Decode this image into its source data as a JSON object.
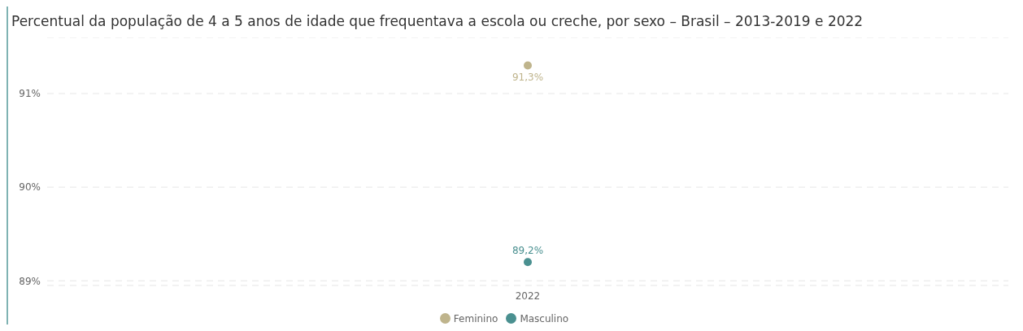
{
  "chart_data": {
    "type": "line",
    "title": "Percentual da população de 4 a 5 anos de idade que frequentava a escola ou creche, por sexo – Brasil – 2013-2019 e 2022",
    "categories": [
      "2022"
    ],
    "series": [
      {
        "name": "Masculino",
        "color": "#4a9090",
        "values": [
          89.2
        ],
        "value_labels": [
          "89,2%"
        ]
      },
      {
        "name": "Feminino",
        "color": "#bfb48c",
        "values": [
          91.3
        ],
        "value_labels": [
          "91,3%"
        ]
      }
    ],
    "ylim": [
      88.95,
      91.6
    ],
    "yticks": [
      {
        "value": 89,
        "label": "89%"
      },
      {
        "value": 90,
        "label": "90%"
      },
      {
        "value": 91,
        "label": "91%"
      }
    ],
    "grid": "y",
    "legend": "bottom",
    "marker": "circle"
  }
}
